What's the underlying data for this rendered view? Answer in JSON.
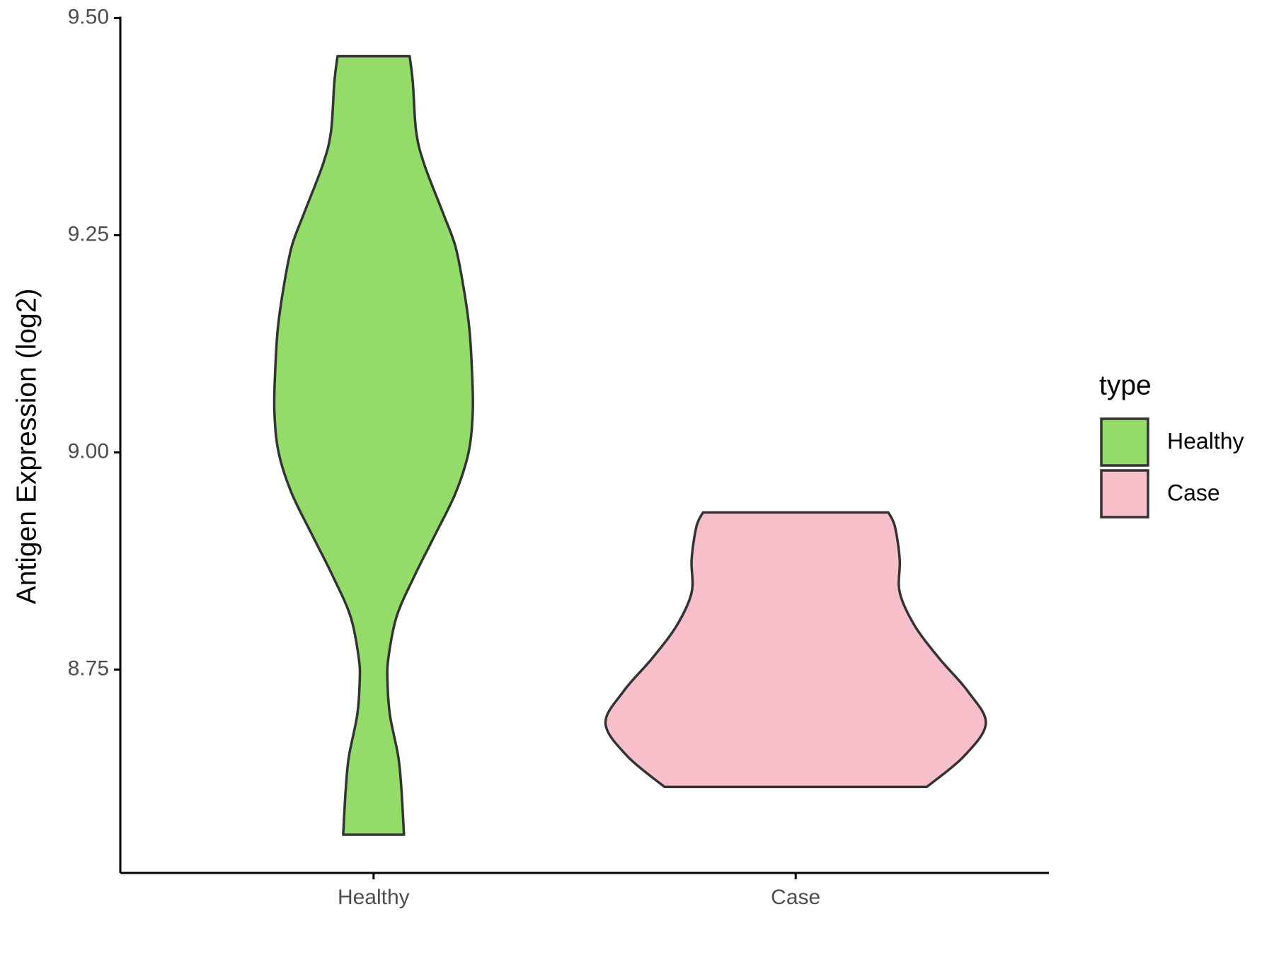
{
  "chart_data": {
    "type": "violin",
    "y_label": "Antigen Expression (log2)",
    "categories": [
      "Healthy",
      "Case"
    ],
    "legend_title": "type",
    "ylim": [
      8.516,
      9.5
    ],
    "yticks": [
      8.75,
      {
        "value": 9.0,
        "label": "9.00"
      },
      9.25,
      {
        "value": 9.5,
        "label": "9.50"
      }
    ],
    "grid": false,
    "series": [
      {
        "name": "Healthy",
        "color": "#93dc6a",
        "y": [
          9.456,
          9.426,
          9.369,
          9.331,
          9.275,
          9.237,
          9.189,
          9.142,
          9.095,
          9.047,
          9.0,
          8.953,
          8.905,
          8.858,
          8.811,
          8.763,
          8.735,
          8.697,
          8.65,
          8.612,
          8.56
        ],
        "width": [
          0.171,
          0.186,
          0.202,
          0.241,
          0.33,
          0.388,
          0.427,
          0.454,
          0.466,
          0.47,
          0.45,
          0.388,
          0.291,
          0.194,
          0.109,
          0.07,
          0.066,
          0.078,
          0.117,
          0.132,
          0.144
        ]
      },
      {
        "name": "Case",
        "color": "#f7bfca",
        "y": [
          8.931,
          8.915,
          8.877,
          8.839,
          8.801,
          8.763,
          8.725,
          8.688,
          8.65,
          8.615
        ],
        "width": [
          0.439,
          0.47,
          0.493,
          0.493,
          0.563,
          0.68,
          0.816,
          0.901,
          0.796,
          0.621
        ]
      }
    ]
  }
}
